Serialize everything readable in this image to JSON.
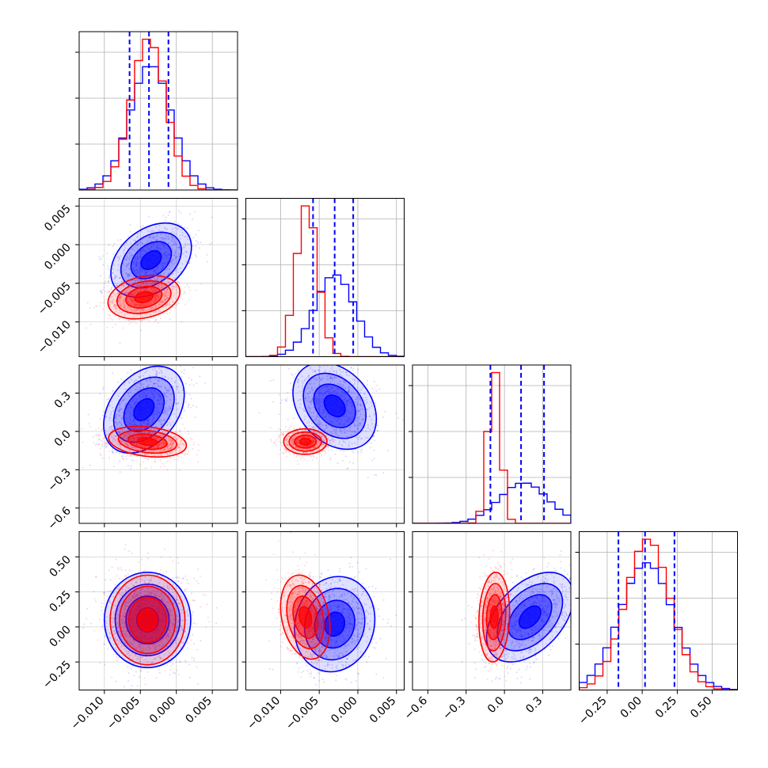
{
  "chart_data": {
    "type": "corner",
    "title": "",
    "grid": true,
    "series": [
      {
        "name": "",
        "color": "#0000ff"
      },
      {
        "name": "",
        "color": "#ff0000"
      }
    ],
    "parameters": [
      {
        "range": [
          -0.0135,
          0.0085
        ],
        "ticks": [
          -0.01,
          -0.005,
          0.0,
          0.005
        ],
        "tick_labels": [
          "−0.010",
          "−0.005",
          "0.000",
          "0.005"
        ],
        "quantiles_blue": [
          -0.0065,
          -0.0038,
          -0.0011
        ],
        "blue": {
          "mean": -0.0036,
          "sd": 0.0029
        },
        "red": {
          "mean": -0.0039,
          "sd": 0.0024
        }
      },
      {
        "range": [
          -0.0145,
          0.006
        ],
        "ticks": [
          -0.01,
          -0.005,
          0.0,
          0.005
        ],
        "tick_labels": [
          "−0.010",
          "−0.005",
          "0.000",
          "0.005"
        ],
        "quantiles_blue": [
          -0.0058,
          -0.003,
          -0.0006
        ],
        "blue": {
          "mean": -0.003,
          "sd": 0.0026
        },
        "red": {
          "mean": -0.0066,
          "sd": 0.0014
        }
      },
      {
        "range": [
          -0.72,
          0.52
        ],
        "ticks": [
          -0.6,
          -0.3,
          0.0,
          0.3
        ],
        "tick_labels": [
          "−0.6",
          "−0.3",
          "0.0",
          "0.3"
        ],
        "quantiles_blue": [
          -0.11,
          0.13,
          0.31
        ],
        "blue": {
          "mean": 0.15,
          "sd": 0.19
        },
        "red": {
          "mean": -0.08,
          "sd": 0.05
        }
      },
      {
        "range": [
          -0.45,
          0.68
        ],
        "ticks": [
          -0.25,
          0.0,
          0.25,
          0.5
        ],
        "tick_labels": [
          "−0.25",
          "0.00",
          "0.25",
          "0.50"
        ],
        "quantiles_blue": [
          -0.17,
          0.02,
          0.23
        ],
        "blue": {
          "mean": 0.03,
          "sd": 0.19
        },
        "red": {
          "mean": 0.04,
          "sd": 0.16
        }
      }
    ],
    "pairs": [
      {
        "row": 1,
        "col": 0,
        "blue": {
          "mx": -0.0035,
          "my": -0.002,
          "sx": 0.0028,
          "sy": 0.0024,
          "rho": 0.35
        },
        "red": {
          "mx": -0.0045,
          "my": -0.0068,
          "sx": 0.0025,
          "sy": 0.0014,
          "rho": 0.25
        }
      },
      {
        "row": 2,
        "col": 0,
        "blue": {
          "mx": -0.0045,
          "my": 0.17,
          "sx": 0.0028,
          "sy": 0.17,
          "rho": 0.35
        },
        "red": {
          "mx": -0.004,
          "my": -0.08,
          "sx": 0.0027,
          "sy": 0.06,
          "rho": -0.25
        }
      },
      {
        "row": 2,
        "col": 1,
        "blue": {
          "mx": -0.003,
          "my": 0.2,
          "sx": 0.0027,
          "sy": 0.17,
          "rho": -0.3
        },
        "red": {
          "mx": -0.0068,
          "my": -0.08,
          "sx": 0.0014,
          "sy": 0.05,
          "rho": 0.0
        }
      },
      {
        "row": 3,
        "col": 0,
        "blue": {
          "mx": -0.004,
          "my": 0.05,
          "sx": 0.003,
          "sy": 0.17,
          "rho": 0.0
        },
        "red": {
          "mx": -0.004,
          "my": 0.05,
          "sx": 0.0026,
          "sy": 0.16,
          "rho": 0.0
        }
      },
      {
        "row": 3,
        "col": 1,
        "blue": {
          "mx": -0.003,
          "my": 0.02,
          "sx": 0.0026,
          "sy": 0.17,
          "rho": 0.1
        },
        "red": {
          "mx": -0.0068,
          "my": 0.07,
          "sx": 0.0016,
          "sy": 0.15,
          "rho": -0.25
        }
      },
      {
        "row": 3,
        "col": 2,
        "blue": {
          "mx": 0.2,
          "my": 0.07,
          "sx": 0.17,
          "sy": 0.16,
          "rho": 0.45
        },
        "red": {
          "mx": -0.08,
          "my": 0.07,
          "sx": 0.06,
          "sy": 0.16,
          "rho": 0.1
        }
      }
    ]
  }
}
